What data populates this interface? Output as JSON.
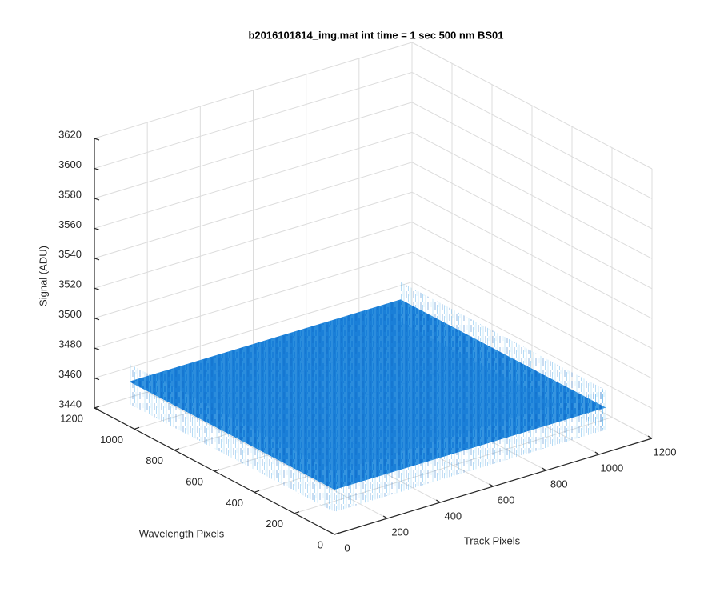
{
  "chart_data": {
    "type": "surface3d",
    "title": "b2016101814_img.mat int time = 1 sec  500 nm BS01",
    "xlabel": "Track Pixels",
    "ylabel": "Wavelength Pixels",
    "zlabel": "Signal (ADU)",
    "xlim": [
      0,
      1200
    ],
    "ylim": [
      0,
      1200
    ],
    "zlim": [
      3440,
      3620
    ],
    "xticks": [
      0,
      200,
      400,
      600,
      800,
      1000,
      1200
    ],
    "yticks": [
      0,
      200,
      400,
      600,
      800,
      1000,
      1200
    ],
    "zticks": [
      3440,
      3460,
      3480,
      3500,
      3520,
      3540,
      3560,
      3580,
      3600,
      3620
    ],
    "grid": true,
    "color": "#1a7fd8",
    "surface": {
      "x": [
        0,
        256,
        512,
        768,
        1024
      ],
      "y": [
        0,
        256,
        512,
        768,
        1024
      ],
      "z": [
        [
          3470,
          3470,
          3470,
          3470,
          3470
        ],
        [
          3470,
          3470,
          3470,
          3470,
          3470
        ],
        [
          3470,
          3470,
          3470,
          3470,
          3470
        ],
        [
          3470,
          3470,
          3470,
          3470,
          3470
        ],
        [
          3470,
          3470,
          3470,
          3470,
          3470
        ]
      ]
    }
  }
}
